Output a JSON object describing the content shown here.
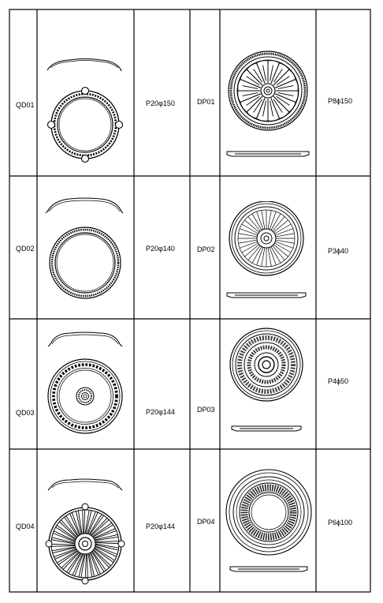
{
  "rows": [
    {
      "left_code": "QD01",
      "left_spec": "P20φ150",
      "right_code": "DP01",
      "right_spec": "P8ϕ150"
    },
    {
      "left_code": "QD02",
      "left_spec": "P20φ140",
      "right_code": "DP02",
      "right_spec": "P3ϕ40"
    },
    {
      "left_code": "QD03",
      "left_spec": "P20φ144",
      "right_code": "DP03",
      "right_spec": "P4ϕ50"
    },
    {
      "left_code": "QD04",
      "left_spec": "P20φ144",
      "right_code": "DP04",
      "right_spec": "P6ϕ100"
    }
  ],
  "colors": {
    "line": "#000000",
    "background": "#ffffff"
  },
  "drawings": {
    "left": [
      "ring-wreath-drawing",
      "ring-plain-drawing",
      "ring-beaded-drawing",
      "medallion-ribbed-drawing"
    ],
    "right": [
      "rosette-petal-drawing",
      "rosette-radial-drawing",
      "rosette-ornate-drawing",
      "rosette-dentil-drawing"
    ]
  }
}
